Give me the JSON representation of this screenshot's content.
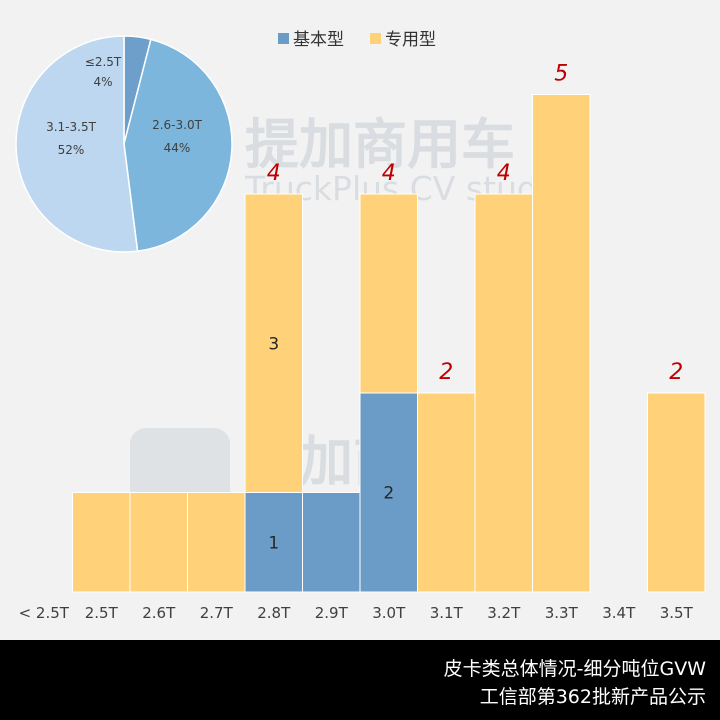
{
  "chart_data": [
    {
      "type": "bar",
      "stacked": true,
      "categories": [
        "< 2.5T",
        "2.5T",
        "2.6T",
        "2.7T",
        "2.8T",
        "2.9T",
        "3.0T",
        "3.1T",
        "3.2T",
        "3.3T",
        "3.4T",
        "3.5T"
      ],
      "series": [
        {
          "name": "基本型",
          "color": "#6a9cc7",
          "values": [
            0,
            0,
            0,
            0,
            1,
            1,
            2,
            0,
            0,
            0,
            0,
            0
          ]
        },
        {
          "name": "专用型",
          "color": "#ffd27a",
          "values": [
            0,
            1,
            1,
            1,
            3,
            0,
            2,
            2,
            4,
            5,
            0,
            2
          ]
        }
      ],
      "segment_labels": [
        {
          "category": "2.8T",
          "series": "基本型",
          "text": "1"
        },
        {
          "category": "2.8T",
          "series": "专用型",
          "text": "3"
        },
        {
          "category": "3.0T",
          "series": "基本型",
          "text": "2"
        }
      ],
      "total_labels": [
        {
          "category": "2.8T",
          "text": "4"
        },
        {
          "category": "3.0T",
          "text": "4"
        },
        {
          "category": "3.1T",
          "text": "2"
        },
        {
          "category": "3.2T",
          "text": "4"
        },
        {
          "category": "3.3T",
          "text": "5"
        },
        {
          "category": "3.5T",
          "text": "2"
        }
      ],
      "ylim": [
        0,
        5
      ],
      "legend_position": "top",
      "grid": false
    },
    {
      "type": "pie",
      "slices": [
        {
          "label": "≤2.5T",
          "pct_text": "4%",
          "value": 4,
          "color": "#6e9fcb"
        },
        {
          "label": "2.6-3.0T",
          "pct_text": "44%",
          "value": 44,
          "color": "#7db6dc"
        },
        {
          "label": "3.1-3.5T",
          "pct_text": "52%",
          "value": 52,
          "color": "#bcd7ef"
        }
      ]
    }
  ],
  "watermark": {
    "cn": "提加商用车",
    "en": "TruckPlus CV studio"
  },
  "footer": {
    "line1": "皮卡类总体情况-细分吨位GVW",
    "line2": "工信部第362批新产品公示"
  }
}
